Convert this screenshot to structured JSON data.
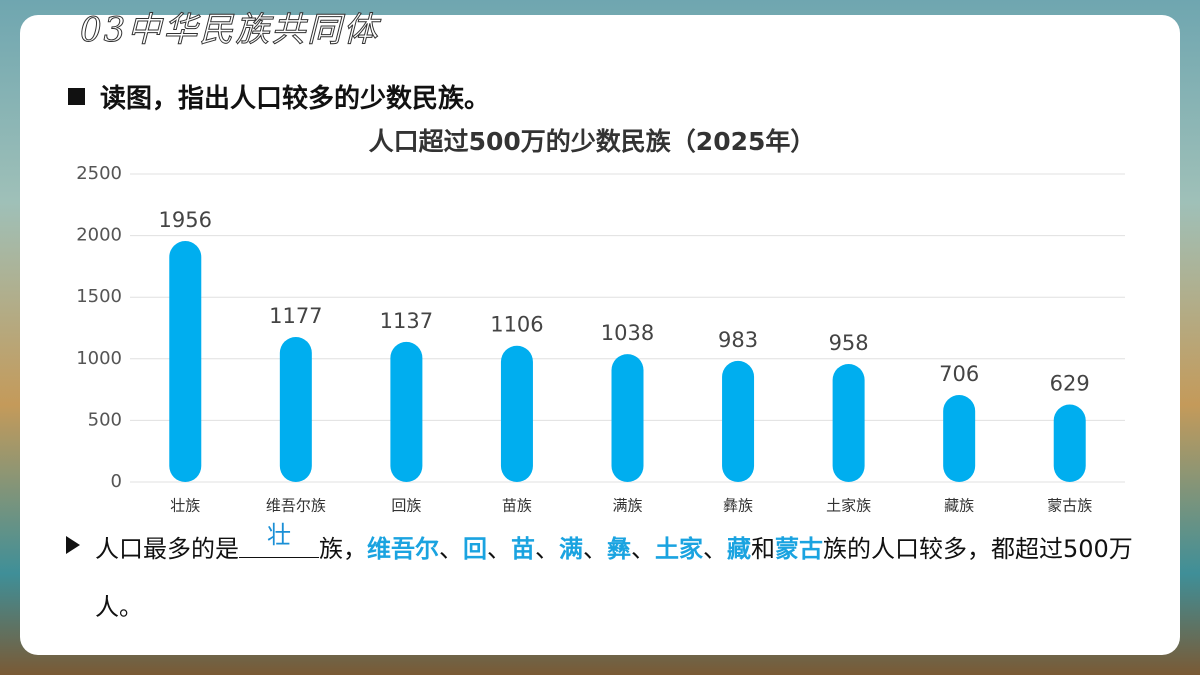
{
  "header": {
    "title": "03中华民族共同体"
  },
  "question": "读图，指出人口较多的少数民族。",
  "chart_data": {
    "type": "bar",
    "title": "人口超过500万的少数民族（2025年）",
    "categories": [
      "壮族",
      "维吾尔族",
      "回族",
      "苗族",
      "满族",
      "彝族",
      "土家族",
      "藏族",
      "蒙古族"
    ],
    "values": [
      1956,
      1177,
      1137,
      1106,
      1038,
      983,
      958,
      706,
      629
    ],
    "color": "#00aeef",
    "ylim": [
      0,
      2500
    ],
    "yticks": [
      0,
      500,
      1000,
      1500,
      2000,
      2500
    ],
    "grid": true
  },
  "summary": {
    "prefix": "人口最多的是",
    "answer": "壮",
    "after_answer": "族，",
    "groups": [
      "维吾尔",
      "回",
      "苗",
      "满",
      "彝",
      "土家",
      "藏",
      "蒙古"
    ],
    "separator": "、",
    "conjunction": "和",
    "suffix": "族的人口较多，都超过500万人。"
  }
}
